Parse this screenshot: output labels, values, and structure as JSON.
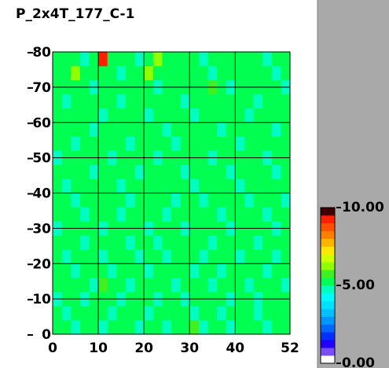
{
  "chart_data": {
    "type": "heatmap",
    "title": "P_2x4T_177_C-1",
    "xlim": [
      0,
      52
    ],
    "ylim": [
      0,
      80
    ],
    "xticks": [
      0,
      10,
      20,
      30,
      40,
      52
    ],
    "yticks": [
      0,
      10,
      20,
      30,
      40,
      50,
      60,
      70,
      80
    ],
    "grid": true,
    "clim": [
      0,
      10
    ],
    "cticks": [
      {
        "value": 0,
        "label": "0.00"
      },
      {
        "value": 5,
        "label": "5.00"
      },
      {
        "value": 10,
        "label": "10.00"
      }
    ],
    "colorscale": [
      "#ffffff",
      "#7a4dff",
      "#2000ff",
      "#0030ff",
      "#0068ff",
      "#0098ff",
      "#00c0ff",
      "#00e0ff",
      "#00fcff",
      "#00ffbe",
      "#00ff50",
      "#40f020",
      "#90ff00",
      "#d0ff00",
      "#ffe800",
      "#ffb400",
      "#ff8000",
      "#ff5000",
      "#ff2000",
      "#400000"
    ],
    "z": [
      [
        5.2,
        5.0,
        4.8,
        5.3,
        5.1,
        4.6,
        5.2,
        5.4,
        5.0,
        4.8,
        5.1,
        5.3,
        4.9,
        5.2,
        5.0,
        5.6,
        4.8,
        5.1,
        5.2,
        4.7,
        5.0,
        5.3,
        5.1,
        4.9,
        5.2,
        5.0
      ],
      [
        5.1,
        4.8,
        5.2,
        5.0,
        5.4,
        5.1,
        4.9,
        5.2,
        5.3,
        5.0,
        4.7,
        5.1,
        5.2,
        5.0,
        5.3,
        4.9,
        5.1,
        5.2,
        4.8,
        5.0,
        5.4,
        5.1,
        4.9,
        5.2,
        5.0,
        5.3
      ],
      [
        4.9,
        5.3,
        5.1,
        4.8,
        5.2,
        5.0,
        5.3,
        4.7,
        5.1,
        5.2,
        5.0,
        4.9,
        5.4,
        5.1,
        4.8,
        5.2,
        5.0,
        5.3,
        5.1,
        4.9,
        5.2,
        5.0,
        4.8,
        5.1,
        5.3,
        5.0
      ],
      [
        5.3,
        5.0,
        5.2,
        5.1,
        4.9,
        5.8,
        5.0,
        5.2,
        4.8,
        5.1,
        5.3,
        5.0,
        5.2,
        4.9,
        5.1,
        5.0,
        5.4,
        4.8,
        5.2,
        5.1,
        5.0,
        4.7,
        5.2,
        5.0,
        5.1,
        4.9
      ],
      [
        5.0,
        5.2,
        4.9,
        5.1,
        5.3,
        5.0,
        4.8,
        5.1,
        5.2,
        5.0,
        4.9,
        5.2,
        5.1,
        5.3,
        5.0,
        4.8,
        5.2,
        5.1,
        4.9,
        5.3,
        5.0,
        5.2,
        5.1,
        4.8,
        5.0,
        5.2
      ],
      [
        5.1,
        4.9,
        5.3,
        5.0,
        5.1,
        4.8,
        5.2,
        5.0,
        5.4,
        4.9,
        5.1,
        5.0,
        4.8,
        5.2,
        5.1,
        5.3,
        4.9,
        5.0,
        5.2,
        5.1,
        4.8,
        5.0,
        5.3,
        5.1,
        4.9,
        5.1
      ],
      [
        5.2,
        5.1,
        5.0,
        4.8,
        5.2,
        5.1,
        5.0,
        5.3,
        4.9,
        5.1,
        5.2,
        4.8,
        5.0,
        5.1,
        5.3,
        5.0,
        5.1,
        4.9,
        5.2,
        5.0,
        5.1,
        5.3,
        4.9,
        5.0,
        5.2,
        5.1
      ],
      [
        4.8,
        5.2,
        5.1,
        5.3,
        5.0,
        4.9,
        5.1,
        5.2,
        5.0,
        5.1,
        4.8,
        5.3,
        5.1,
        5.0,
        4.9,
        5.2,
        5.0,
        5.1,
        5.3,
        4.8,
        5.2,
        5.0,
        5.1,
        5.2,
        4.9,
        5.0
      ],
      [
        5.1,
        5.0,
        5.3,
        4.9,
        5.1,
        5.2,
        5.0,
        4.8,
        5.2,
        5.3,
        5.0,
        5.1,
        4.9,
        5.2,
        5.0,
        5.1,
        5.3,
        5.0,
        4.8,
        5.1,
        5.0,
        5.2,
        5.1,
        4.9,
        5.3,
        5.1
      ],
      [
        5.0,
        5.3,
        4.9,
        5.2,
        5.0,
        5.1,
        5.3,
        5.1,
        4.9,
        5.0,
        5.2,
        5.0,
        5.1,
        4.8,
        5.2,
        5.0,
        4.9,
        5.2,
        5.1,
        5.0,
        5.3,
        4.9,
        5.0,
        5.1,
        5.2,
        4.8
      ],
      [
        5.2,
        4.9,
        5.1,
        5.0,
        5.3,
        5.0,
        5.1,
        4.9,
        5.2,
        5.1,
        5.0,
        5.3,
        5.2,
        5.0,
        5.1,
        4.9,
        5.2,
        5.0,
        5.3,
        5.1,
        4.9,
        5.1,
        5.2,
        5.0,
        5.1,
        5.0
      ],
      [
        5.1,
        5.2,
        5.0,
        5.1,
        4.9,
        5.2,
        5.0,
        5.3,
        5.1,
        4.8,
        5.2,
        5.1,
        5.0,
        5.3,
        4.9,
        5.1,
        5.0,
        5.2,
        5.0,
        4.9,
        5.1,
        5.2,
        5.0,
        5.3,
        4.9,
        5.2
      ],
      [
        4.9,
        5.1,
        5.2,
        5.0,
        5.1,
        5.3,
        4.9,
        5.0,
        5.2,
        5.1,
        5.0,
        4.9,
        5.2,
        5.1,
        5.0,
        5.3,
        5.1,
        4.8,
        5.0,
        5.2,
        5.1,
        5.0,
        5.3,
        4.9,
        5.1,
        5.0
      ],
      [
        5.2,
        5.0,
        4.9,
        5.3,
        5.1,
        5.0,
        5.2,
        5.1,
        4.9,
        5.2,
        5.3,
        5.0,
        5.1,
        4.9,
        5.2,
        5.0,
        5.1,
        5.3,
        5.0,
        5.1,
        4.9,
        5.2,
        5.0,
        5.1,
        5.0,
        5.3
      ],
      [
        5.0,
        5.1,
        5.3,
        5.0,
        4.9,
        5.1,
        5.2,
        5.0,
        5.3,
        5.0,
        5.1,
        5.2,
        4.9,
        5.0,
        5.1,
        5.2,
        5.0,
        5.1,
        4.9,
        5.3,
        5.0,
        5.1,
        5.2,
        5.0,
        4.8,
        5.1
      ],
      [
        5.1,
        5.3,
        5.0,
        5.2,
        5.0,
        4.9,
        5.1,
        5.3,
        5.0,
        5.2,
        4.9,
        5.1,
        5.0,
        5.2,
        5.1,
        4.9,
        5.3,
        5.0,
        5.1,
        5.2,
        5.0,
        4.9,
        5.1,
        5.3,
        5.0,
        5.2
      ],
      [
        5.0,
        4.9,
        5.2,
        5.1,
        5.3,
        5.0,
        5.1,
        4.9,
        5.2,
        5.0,
        5.1,
        5.3,
        5.0,
        5.1,
        4.9,
        5.2,
        5.0,
        5.1,
        5.3,
        5.0,
        5.2,
        5.1,
        4.9,
        5.0,
        5.2,
        5.1
      ],
      [
        5.2,
        5.1,
        5.0,
        5.3,
        4.9,
        5.2,
        5.0,
        5.1,
        5.3,
        5.0,
        5.2,
        4.9,
        5.1,
        5.0,
        5.3,
        5.1,
        5.0,
        5.8,
        5.1,
        4.9,
        5.2,
        5.0,
        5.1,
        5.2,
        5.0,
        4.9
      ],
      [
        5.1,
        5.0,
        6.4,
        5.1,
        5.2,
        5.0,
        5.3,
        4.9,
        5.1,
        5.0,
        6.1,
        5.2,
        5.0,
        5.1,
        5.2,
        5.0,
        5.1,
        4.9,
        5.2,
        5.1,
        5.0,
        5.3,
        5.1,
        5.0,
        4.9,
        5.2
      ],
      [
        5.0,
        5.2,
        5.1,
        4.9,
        5.0,
        9.2,
        5.1,
        5.0,
        5.2,
        4.9,
        5.1,
        6.1,
        5.0,
        5.2,
        5.1,
        5.0,
        4.9,
        5.1,
        5.2,
        5.0,
        5.1,
        5.0,
        5.2,
        4.9,
        5.1,
        5.0
      ]
    ]
  }
}
